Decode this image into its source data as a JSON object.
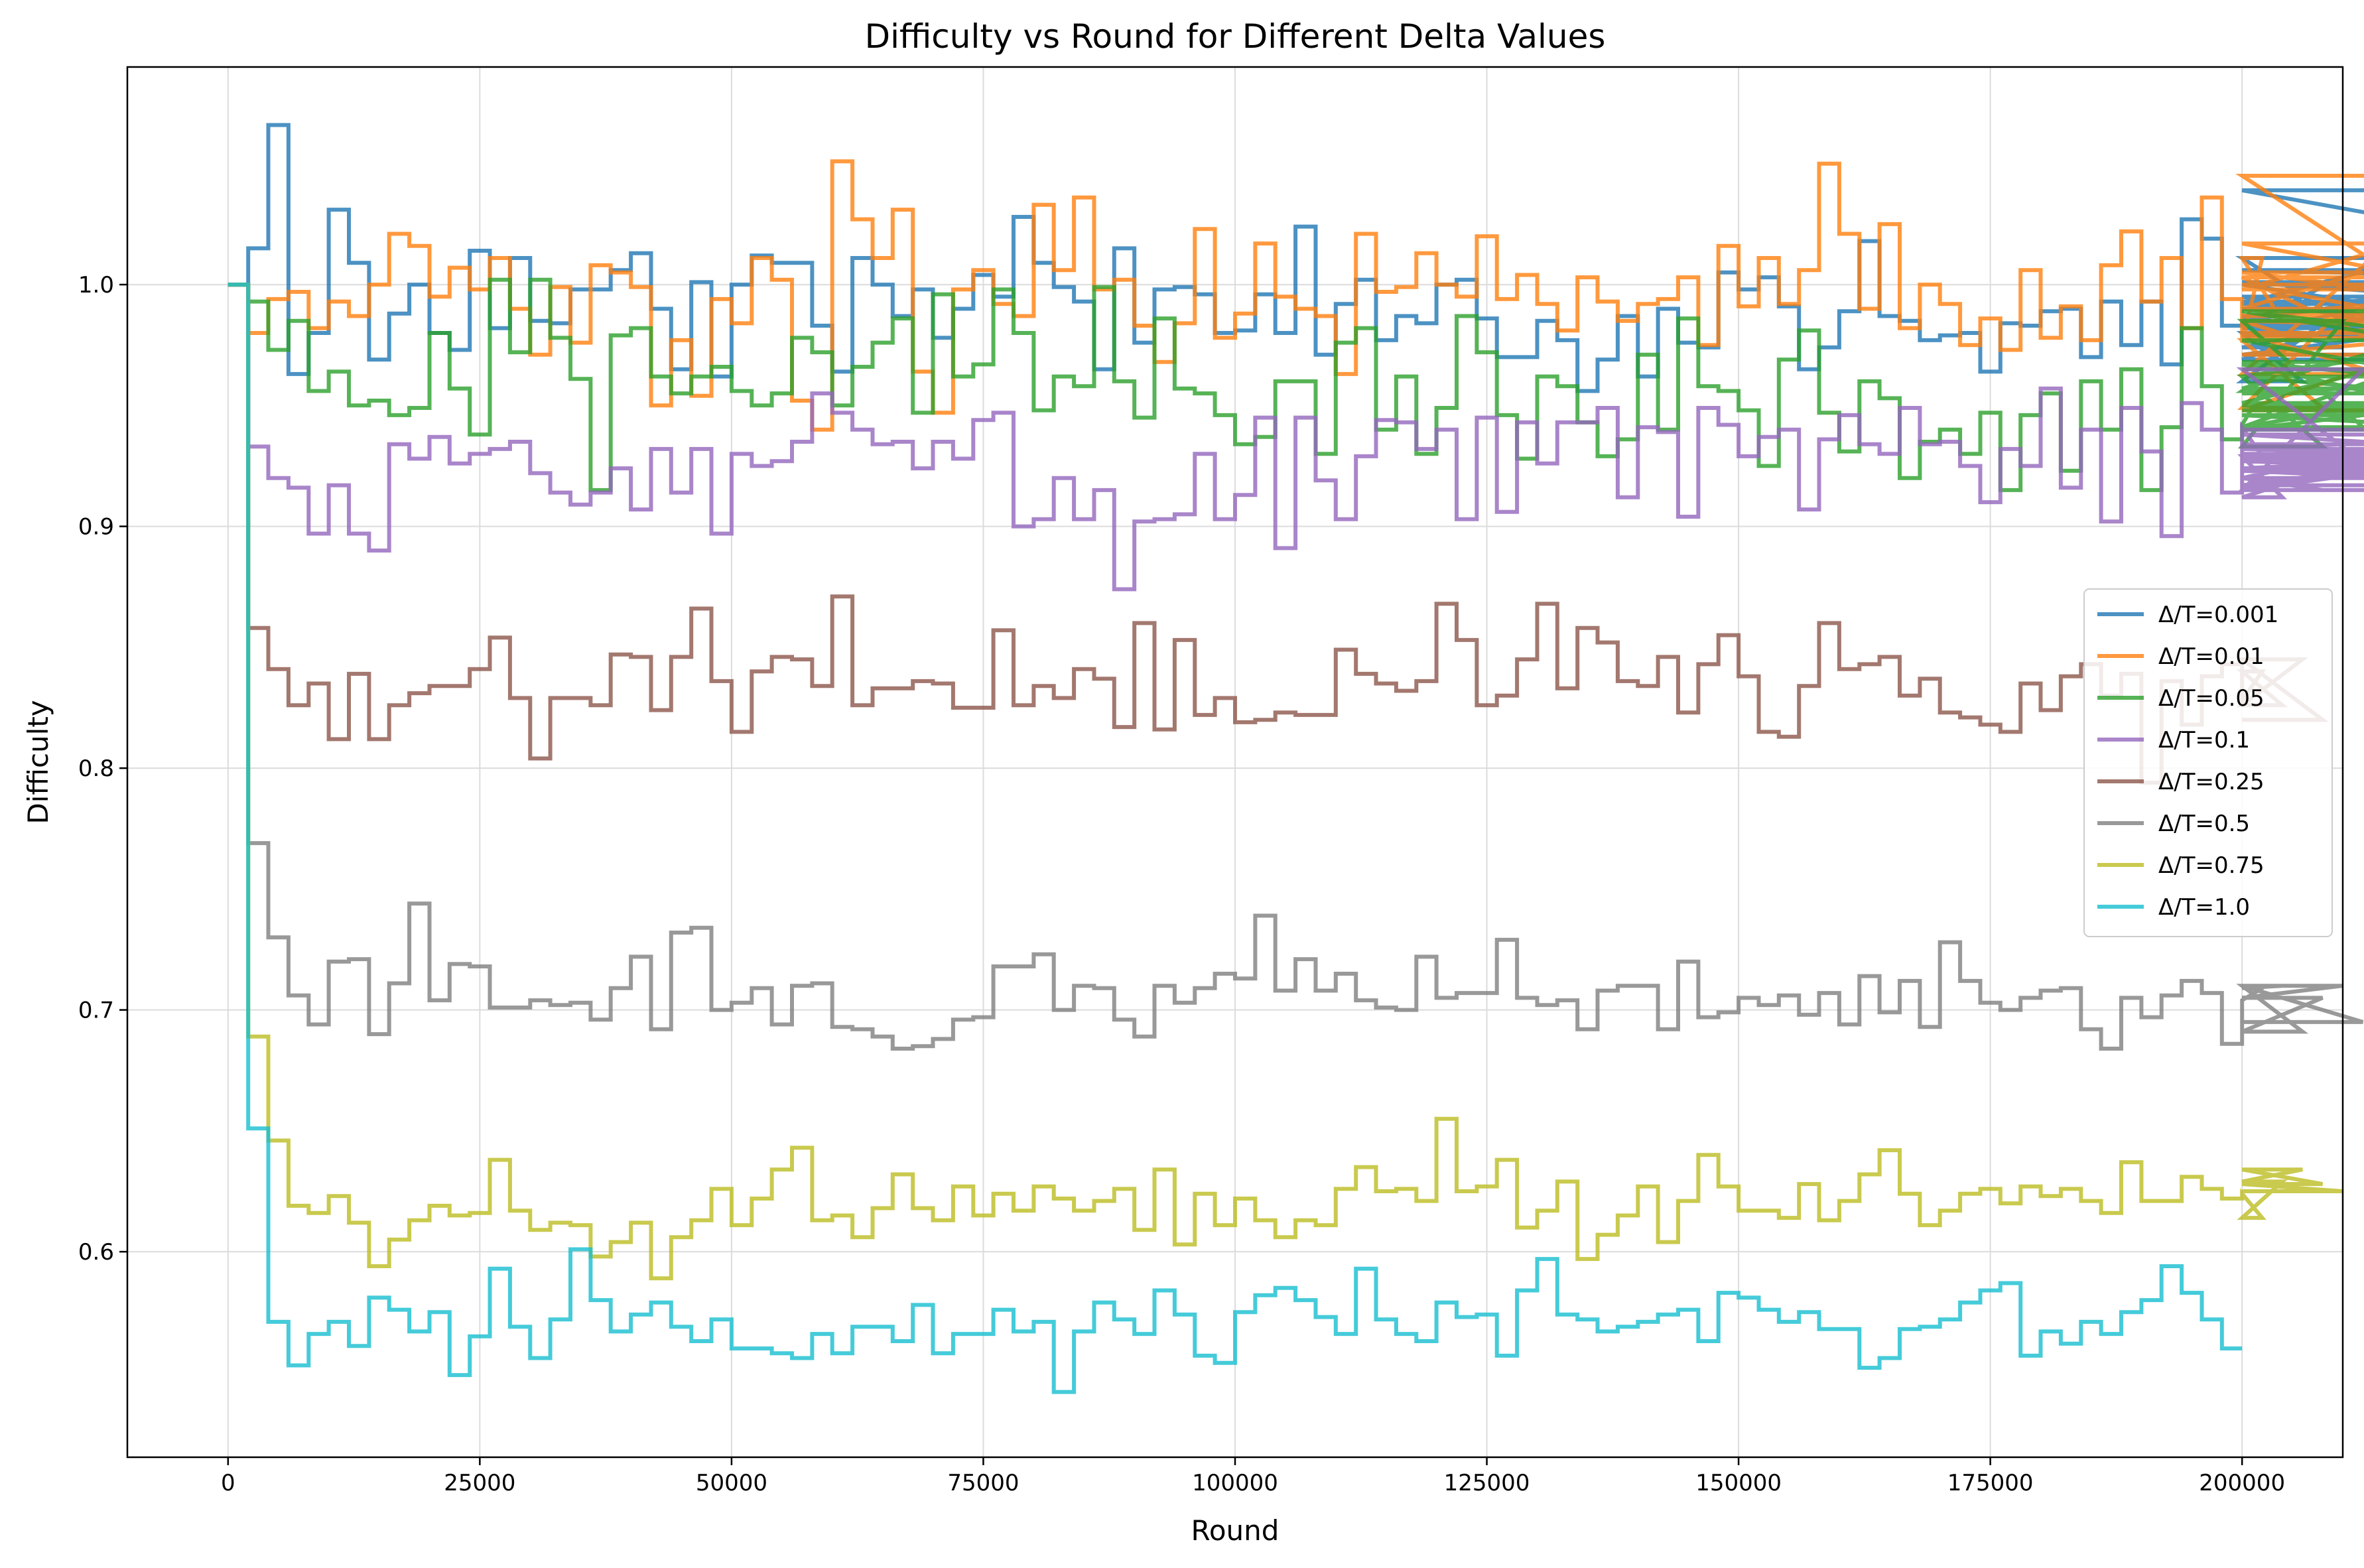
{
  "chart_data": {
    "type": "line",
    "step": true,
    "title": "Difficulty vs Round for Different Delta Values",
    "xlabel": "Round",
    "ylabel": "Difficulty",
    "xlim": [
      -10000,
      210000
    ],
    "ylim": [
      0.515,
      1.09
    ],
    "x_ticks": [
      0,
      25000,
      50000,
      75000,
      100000,
      125000,
      150000,
      175000,
      200000
    ],
    "x_tick_labels": [
      "0",
      "25000",
      "50000",
      "75000",
      "100000",
      "125000",
      "150000",
      "175000",
      "200000"
    ],
    "y_ticks": [
      0.6,
      0.7,
      0.8,
      0.9,
      1.0
    ],
    "y_tick_labels": [
      "0.6",
      "0.7",
      "0.8",
      "0.9",
      "1.0"
    ],
    "grid": true,
    "legend_position": "center-right",
    "x_step": 2000,
    "series": [
      {
        "name": "Δ/T=0.001",
        "color": "#1f77b4",
        "values": [
          1.0,
          1.015,
          1.066,
          0.963,
          0.98,
          1.031,
          1.009,
          0.969,
          0.988,
          1.0,
          0.98,
          0.973,
          1.014,
          0.982,
          1.011,
          0.985,
          0.984,
          0.998,
          0.998,
          1.006,
          1.013,
          0.99,
          0.965,
          1.001,
          0.962,
          1.0,
          1.012,
          1.009,
          1.009,
          0.983,
          0.964,
          1.011,
          1.0,
          0.987,
          0.998,
          0.978,
          0.99,
          1.004,
          0.995,
          1.028,
          1.009,
          0.999,
          0.993,
          0.965,
          1.015,
          0.976,
          0.998,
          0.999,
          0.996,
          0.98,
          0.981,
          0.996,
          0.98,
          1.024,
          0.971,
          0.992,
          1.002,
          0.977,
          0.987,
          0.984,
          1.0,
          1.002,
          0.986,
          0.97,
          0.97,
          0.985,
          0.977,
          0.956,
          0.969,
          0.987,
          0.962,
          0.99,
          0.976,
          0.974,
          1.005,
          0.998,
          1.003,
          0.991,
          0.965,
          0.974,
          0.989,
          1.018,
          0.987,
          0.985,
          0.977,
          0.979,
          0.98,
          0.964,
          0.984,
          0.983,
          0.989,
          0.99,
          0.97,
          0.993,
          0.975,
          0.993,
          0.967,
          1.027,
          1.019,
          0.983,
          0.984,
          0.987,
          0.98,
          0.96,
          0.984,
          0.974,
          0.983,
          1.011,
          0.969,
          0.995,
          0.979,
          1.0,
          0.985,
          1.001,
          0.993,
          0.979,
          0.982,
          0.971,
          0.99,
          1.001,
          0.992,
          1.039,
          1.006,
          1.001
        ]
      },
      {
        "name": "Δ/T=0.01",
        "color": "#ff7f0e",
        "values": [
          1.0,
          0.98,
          0.994,
          0.997,
          0.982,
          0.993,
          0.987,
          1.0,
          1.021,
          1.016,
          0.995,
          1.007,
          0.998,
          1.011,
          0.99,
          0.971,
          0.999,
          0.976,
          1.008,
          1.005,
          0.999,
          0.95,
          0.977,
          0.954,
          0.994,
          0.984,
          1.011,
          1.002,
          0.952,
          0.94,
          1.051,
          1.027,
          1.011,
          1.031,
          0.964,
          0.947,
          0.998,
          1.006,
          0.992,
          0.987,
          1.033,
          1.006,
          1.036,
          0.998,
          1.002,
          0.983,
          0.968,
          0.984,
          1.023,
          0.978,
          0.988,
          1.017,
          0.995,
          0.99,
          0.987,
          0.963,
          1.021,
          0.997,
          0.999,
          1.013,
          1.0,
          0.995,
          1.02,
          0.994,
          1.004,
          0.992,
          0.981,
          1.003,
          0.993,
          0.985,
          0.992,
          0.994,
          1.003,
          0.975,
          1.016,
          0.991,
          1.011,
          0.992,
          1.006,
          1.05,
          1.021,
          0.99,
          1.025,
          0.982,
          1.0,
          0.992,
          0.975,
          0.986,
          0.973,
          1.006,
          0.978,
          0.991,
          0.977,
          1.008,
          1.022,
          0.993,
          1.011,
          0.982,
          1.036,
          0.994,
          0.976,
          1.011,
          0.985,
          0.977,
          0.949,
          0.99,
          1.005,
          0.998,
          1.017,
          1.003,
          0.963,
          1.045,
          0.98,
          0.948,
          0.987,
          0.99,
          0.978,
          0.987,
          1.0,
          0.971,
          0.985,
          0.985,
          0.98,
          0.98
        ]
      },
      {
        "name": "Δ/T=0.05",
        "color": "#2ca02c",
        "values": [
          1.0,
          0.993,
          0.973,
          0.985,
          0.956,
          0.964,
          0.95,
          0.952,
          0.946,
          0.949,
          0.98,
          0.957,
          0.938,
          1.002,
          0.972,
          1.002,
          0.978,
          0.961,
          0.915,
          0.979,
          0.982,
          0.962,
          0.955,
          0.962,
          0.966,
          0.956,
          0.95,
          0.955,
          0.978,
          0.972,
          0.95,
          0.966,
          0.976,
          0.986,
          0.947,
          0.996,
          0.962,
          0.967,
          0.998,
          0.98,
          0.948,
          0.962,
          0.958,
          0.999,
          0.96,
          0.945,
          0.986,
          0.957,
          0.955,
          0.946,
          0.934,
          0.937,
          0.96,
          0.96,
          0.93,
          0.976,
          0.982,
          0.94,
          0.962,
          0.93,
          0.949,
          0.987,
          0.972,
          0.946,
          0.928,
          0.962,
          0.958,
          0.943,
          0.929,
          0.936,
          0.971,
          0.94,
          0.986,
          0.958,
          0.956,
          0.948,
          0.925,
          0.969,
          0.981,
          0.947,
          0.931,
          0.96,
          0.953,
          0.92,
          0.935,
          0.94,
          0.93,
          0.947,
          0.915,
          0.946,
          0.955,
          0.923,
          0.96,
          0.94,
          0.965,
          0.915,
          0.941,
          0.982,
          0.958,
          0.936,
          0.942,
          0.956,
          0.967,
          0.962,
          0.933,
          0.985,
          0.941,
          0.951,
          0.968,
          0.95,
          0.946,
          0.941,
          0.977,
          0.957,
          0.989,
          0.968,
          0.968,
          0.955,
          0.962,
          0.948,
          0.95,
          0.94,
          0.962,
          0.989,
          0.965
        ]
      },
      {
        "name": "Δ/T=0.1",
        "color": "#9467bd",
        "values": [
          1.0,
          0.933,
          0.92,
          0.916,
          0.897,
          0.917,
          0.897,
          0.89,
          0.934,
          0.928,
          0.937,
          0.926,
          0.93,
          0.932,
          0.935,
          0.922,
          0.914,
          0.909,
          0.914,
          0.924,
          0.907,
          0.932,
          0.914,
          0.932,
          0.897,
          0.93,
          0.925,
          0.927,
          0.935,
          0.955,
          0.947,
          0.94,
          0.934,
          0.935,
          0.924,
          0.935,
          0.928,
          0.944,
          0.947,
          0.9,
          0.903,
          0.92,
          0.903,
          0.915,
          0.874,
          0.902,
          0.903,
          0.905,
          0.93,
          0.903,
          0.913,
          0.945,
          0.891,
          0.945,
          0.919,
          0.903,
          0.929,
          0.944,
          0.943,
          0.932,
          0.94,
          0.903,
          0.945,
          0.906,
          0.943,
          0.926,
          0.943,
          0.943,
          0.949,
          0.912,
          0.941,
          0.939,
          0.904,
          0.949,
          0.942,
          0.929,
          0.937,
          0.94,
          0.907,
          0.936,
          0.946,
          0.934,
          0.93,
          0.949,
          0.934,
          0.935,
          0.925,
          0.91,
          0.932,
          0.925,
          0.957,
          0.916,
          0.94,
          0.902,
          0.949,
          0.931,
          0.896,
          0.951,
          0.94,
          0.914,
          0.941,
          0.929,
          0.912,
          0.92,
          0.915,
          0.915,
          0.965,
          0.92,
          0.934,
          0.927,
          0.924,
          0.924,
          0.929,
          0.917,
          0.932,
          0.938,
          0.93,
          0.923,
          0.932,
          0.928,
          0.923,
          0.915,
          0.94,
          0.94
        ]
      },
      {
        "name": "Δ/T=0.25",
        "color": "#8c564b",
        "values": [
          1.0,
          0.858,
          0.841,
          0.826,
          0.835,
          0.812,
          0.839,
          0.812,
          0.826,
          0.831,
          0.834,
          0.834,
          0.841,
          0.854,
          0.829,
          0.804,
          0.829,
          0.829,
          0.826,
          0.847,
          0.846,
          0.824,
          0.846,
          0.866,
          0.836,
          0.815,
          0.84,
          0.846,
          0.845,
          0.834,
          0.871,
          0.826,
          0.833,
          0.833,
          0.836,
          0.835,
          0.825,
          0.825,
          0.857,
          0.826,
          0.834,
          0.829,
          0.841,
          0.837,
          0.817,
          0.86,
          0.816,
          0.853,
          0.822,
          0.829,
          0.819,
          0.82,
          0.823,
          0.822,
          0.822,
          0.849,
          0.839,
          0.835,
          0.832,
          0.836,
          0.868,
          0.853,
          0.826,
          0.83,
          0.845,
          0.868,
          0.833,
          0.858,
          0.852,
          0.836,
          0.834,
          0.846,
          0.823,
          0.843,
          0.855,
          0.838,
          0.815,
          0.813,
          0.834,
          0.86,
          0.841,
          0.843,
          0.846,
          0.83,
          0.837,
          0.823,
          0.821,
          0.818,
          0.815,
          0.835,
          0.824,
          0.838,
          0.843,
          0.83,
          0.839,
          0.794,
          0.836,
          0.818,
          0.838,
          0.843,
          0.828,
          0.84,
          0.826,
          0.845,
          0.82
        ]
      },
      {
        "name": "Δ/T=0.5",
        "color": "#7f7f7f",
        "values": [
          1.0,
          0.769,
          0.73,
          0.706,
          0.694,
          0.72,
          0.721,
          0.69,
          0.711,
          0.744,
          0.704,
          0.719,
          0.718,
          0.701,
          0.701,
          0.704,
          0.702,
          0.703,
          0.696,
          0.709,
          0.722,
          0.692,
          0.732,
          0.734,
          0.7,
          0.703,
          0.709,
          0.694,
          0.71,
          0.711,
          0.693,
          0.692,
          0.689,
          0.684,
          0.685,
          0.688,
          0.696,
          0.697,
          0.718,
          0.718,
          0.723,
          0.7,
          0.71,
          0.709,
          0.696,
          0.689,
          0.71,
          0.703,
          0.709,
          0.715,
          0.713,
          0.739,
          0.708,
          0.721,
          0.708,
          0.715,
          0.704,
          0.701,
          0.7,
          0.722,
          0.705,
          0.707,
          0.707,
          0.729,
          0.705,
          0.702,
          0.704,
          0.692,
          0.708,
          0.71,
          0.71,
          0.692,
          0.72,
          0.697,
          0.699,
          0.705,
          0.702,
          0.706,
          0.698,
          0.707,
          0.694,
          0.714,
          0.699,
          0.712,
          0.693,
          0.728,
          0.712,
          0.703,
          0.7,
          0.705,
          0.708,
          0.709,
          0.692,
          0.684,
          0.705,
          0.697,
          0.706,
          0.712,
          0.707,
          0.686,
          0.704,
          0.709,
          0.71,
          0.691,
          0.705,
          0.71,
          0.695
        ]
      },
      {
        "name": "Δ/T=0.75",
        "color": "#bcbd22",
        "values": [
          1.0,
          0.689,
          0.646,
          0.619,
          0.616,
          0.623,
          0.612,
          0.594,
          0.605,
          0.613,
          0.619,
          0.615,
          0.616,
          0.638,
          0.617,
          0.609,
          0.612,
          0.611,
          0.598,
          0.604,
          0.612,
          0.589,
          0.606,
          0.613,
          0.626,
          0.611,
          0.622,
          0.634,
          0.643,
          0.613,
          0.615,
          0.606,
          0.618,
          0.632,
          0.618,
          0.613,
          0.627,
          0.615,
          0.624,
          0.617,
          0.627,
          0.622,
          0.617,
          0.621,
          0.626,
          0.609,
          0.634,
          0.603,
          0.624,
          0.611,
          0.622,
          0.613,
          0.606,
          0.613,
          0.611,
          0.626,
          0.635,
          0.625,
          0.626,
          0.621,
          0.655,
          0.625,
          0.627,
          0.638,
          0.61,
          0.617,
          0.629,
          0.597,
          0.607,
          0.615,
          0.627,
          0.604,
          0.621,
          0.64,
          0.627,
          0.617,
          0.617,
          0.614,
          0.628,
          0.613,
          0.621,
          0.632,
          0.642,
          0.624,
          0.611,
          0.617,
          0.624,
          0.626,
          0.62,
          0.627,
          0.623,
          0.626,
          0.621,
          0.616,
          0.637,
          0.621,
          0.621,
          0.631,
          0.626,
          0.622,
          0.624,
          0.614,
          0.629,
          0.634,
          0.628,
          0.625
        ]
      },
      {
        "name": "Δ/T=1.0",
        "color": "#17becf",
        "values": [
          1.0,
          0.651,
          0.571,
          0.553,
          0.566,
          0.571,
          0.561,
          0.581,
          0.576,
          0.567,
          0.575,
          0.549,
          0.565,
          0.593,
          0.569,
          0.556,
          0.572,
          0.601,
          0.58,
          0.567,
          0.574,
          0.579,
          0.569,
          0.563,
          0.572,
          0.56,
          0.56,
          0.558,
          0.556,
          0.566,
          0.558,
          0.569,
          0.569,
          0.563,
          0.578,
          0.558,
          0.566,
          0.566,
          0.576,
          0.567,
          0.571,
          0.542,
          0.567,
          0.579,
          0.572,
          0.566,
          0.584,
          0.574,
          0.557,
          0.554,
          0.575,
          0.582,
          0.585,
          0.58,
          0.573,
          0.566,
          0.593,
          0.572,
          0.566,
          0.563,
          0.579,
          0.573,
          0.574,
          0.557,
          0.584,
          0.597,
          0.574,
          0.572,
          0.567,
          0.569,
          0.571,
          0.574,
          0.576,
          0.563,
          0.583,
          0.581,
          0.576,
          0.571,
          0.575,
          0.568,
          0.568,
          0.552,
          0.556,
          0.568,
          0.569,
          0.572,
          0.579,
          0.584,
          0.587,
          0.557,
          0.567,
          0.562,
          0.571,
          0.566,
          0.575,
          0.58,
          0.594,
          0.583,
          0.572,
          0.56
        ]
      }
    ]
  }
}
